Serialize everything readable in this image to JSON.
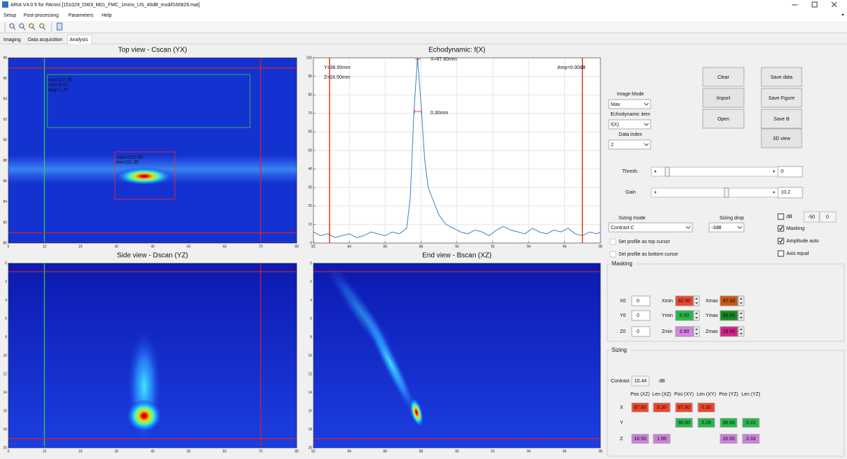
{
  "window": {
    "title": "ARIA V4.0.5 for PAmini [151029_DW3_M01_FMC_1mms_US_40dB_modif160829.mat]"
  },
  "menu": [
    "Setup",
    "Post-processing",
    "Parameters",
    "Help"
  ],
  "tabs": [
    "Imaging",
    "Data acquisition",
    "Analysis"
  ],
  "active_tab": 2,
  "chart_data": [
    {
      "type": "heatmap",
      "title": "Top view - Cscan (YX)",
      "xlim": [
        0,
        80
      ],
      "xticks": [
        0,
        10,
        20,
        30,
        40,
        50,
        60,
        70,
        80
      ],
      "ylim": [
        80,
        98
      ],
      "yticks": [
        80,
        82,
        84,
        86,
        88,
        90,
        92,
        94,
        96,
        98
      ],
      "cursors_x": [
        10,
        70
      ],
      "cursors_x_colors": [
        "#3ccf4a",
        "#e02020"
      ],
      "cursors_y": [
        97,
        81
      ],
      "cursor_color": "#e02020",
      "annotations": [
        {
          "lines": [
            "max=17.26",
            "min=6.67",
            "avg=1.24"
          ],
          "color": "#3ccf4a"
        },
        {
          "lines": [
            "max=100.00",
            "min=31.35"
          ],
          "color": "#ff2a2a"
        }
      ]
    },
    {
      "type": "line",
      "title": "Echodynamic: f(X)",
      "x": [
        82,
        82.4,
        82.8,
        83.2,
        83.6,
        84,
        84.4,
        84.8,
        85.2,
        85.6,
        86,
        86.4,
        86.8,
        87.2,
        87.4,
        87.6,
        87.8,
        88,
        88.2,
        88.4,
        88.6,
        88.8,
        89,
        89.4,
        89.8,
        90.2,
        90.6,
        91,
        91.4,
        91.8,
        92.2,
        92.6,
        93,
        93.4,
        93.8,
        94.2,
        94.6,
        95,
        95.4,
        95.8,
        96.2,
        96.6,
        97,
        97.4,
        97.8,
        98
      ],
      "values": [
        6,
        4,
        5,
        3,
        4,
        5,
        3,
        4,
        6,
        5,
        4,
        6,
        5,
        8,
        25,
        70,
        100,
        75,
        45,
        30,
        25,
        20,
        15,
        10,
        8,
        6,
        5,
        7,
        6,
        4,
        7,
        9,
        7,
        6,
        5,
        8,
        6,
        5,
        7,
        6,
        8,
        5,
        4,
        6,
        5,
        6
      ],
      "color": "#3a7fc8",
      "xlim": [
        82,
        98
      ],
      "xticks": [
        82,
        84,
        86,
        88,
        90,
        92,
        94,
        96,
        98
      ],
      "ylim": [
        0,
        100
      ],
      "yticks": [
        0,
        10,
        20,
        30,
        40,
        50,
        60,
        70,
        80,
        90,
        100
      ],
      "grid": true,
      "cursors_x": [
        82.9,
        97
      ],
      "cursor_color": "#e03a10",
      "annotations": {
        "position": "Y=38.00mm",
        "depth": "Z=16.50mm",
        "peak": "X=87.80mm",
        "width": "0.30mm",
        "amplitude": "Amp=0.00dB"
      }
    },
    {
      "type": "heatmap",
      "title": "Side view - Dscan (YZ)",
      "xlim": [
        0,
        80
      ],
      "xticks": [
        0,
        10,
        20,
        30,
        40,
        50,
        60,
        70,
        80
      ],
      "ylim": [
        20,
        0
      ],
      "yticks": [
        0,
        2,
        4,
        6,
        8,
        10,
        12,
        14,
        16,
        18,
        20
      ],
      "cursors_x": [
        10,
        70
      ],
      "cursors_x_colors": [
        "#3ccf4a",
        "#e02020"
      ],
      "cursors_y": [
        0.9,
        19
      ],
      "cursor_color": "#e02020"
    },
    {
      "type": "heatmap",
      "title": "End view - Bscan (XZ)",
      "xlim": [
        82,
        98
      ],
      "xticks": [
        82,
        84,
        86,
        88,
        90,
        92,
        94,
        96,
        98
      ],
      "ylim": [
        20,
        0
      ],
      "yticks": [
        0,
        2,
        4,
        6,
        8,
        10,
        12,
        14,
        16,
        18,
        20
      ],
      "cursors_y": [
        0.9,
        19
      ],
      "cursor_color": "#e02020"
    }
  ],
  "buttons": {
    "clear": "Clear",
    "import": "Import",
    "open": "Open",
    "save_data": "Save data",
    "save_figure": "Save Figure",
    "save_b": "Save B",
    "view_3d": "3D view"
  },
  "selectors": {
    "image_mode": {
      "label": "Image Mode",
      "value": "Max"
    },
    "echodynamic_item": {
      "label": "Echodynamic item",
      "value": "f(X)"
    },
    "data_index": {
      "label": "Data index",
      "value": "2"
    }
  },
  "sliders": {
    "thresh": {
      "label": "Thresh.",
      "value": "0"
    },
    "gain": {
      "label": "Gain",
      "value": "10.2"
    }
  },
  "sizing_mode": {
    "label": "Sizing mode",
    "value": "Contrast C"
  },
  "sizing_drop": {
    "label": "Sizing drop",
    "value": "-3dB"
  },
  "options": [
    {
      "label": "dB",
      "checked": false
    },
    {
      "label": "Masking",
      "checked": true
    },
    {
      "label": "Amplitude auto",
      "checked": true
    },
    {
      "label": "Axis equal",
      "checked": false
    }
  ],
  "db_range": [
    "-50",
    "0"
  ],
  "profile_options": [
    {
      "label": "Set profile as top cursor",
      "checked": false
    },
    {
      "label": "Set profile as bottom cursor",
      "checked": false
    }
  ],
  "masking": {
    "title": "Masking",
    "rows": [
      {
        "origin_label": "X0",
        "origin": "0",
        "min_label": "Xmin",
        "min": "82.90",
        "min_color": "#f0452a",
        "max_label": "Xmax",
        "max": "97.00",
        "max_color": "#c9580f"
      },
      {
        "origin_label": "Y0",
        "origin": "0",
        "min_label": "Ymin",
        "min": "0.00",
        "min_color": "#27b84a",
        "max_label": "Ymax",
        "max": "80.00",
        "max_color": "#148a22"
      },
      {
        "origin_label": "Z0",
        "origin": "0",
        "min_label": "Zmin",
        "min": "0.90",
        "min_color": "#d584e4",
        "max_label": "Zmax",
        "max": "19.00",
        "max_color": "#d4228e"
      }
    ]
  },
  "sizing": {
    "title": "Sizing",
    "contrast_label": "Contrast",
    "contrast": "10.44",
    "contrast_unit": "dB",
    "columns": [
      "Pos (XZ)",
      "Len (XZ)",
      "Pos (XY)",
      "Len (XY)",
      "Pos (YZ)",
      "Len (YZ)"
    ],
    "rows": [
      {
        "label": "X",
        "color": "#f0452a",
        "cells": [
          "87.80",
          "0.30",
          "87.80",
          "0.30",
          null,
          null
        ]
      },
      {
        "label": "Y",
        "color": "#27b84a",
        "cells": [
          null,
          null,
          "38.00",
          "0.28",
          "38.00",
          "0.22"
        ]
      },
      {
        "label": "Z",
        "color": "#cc80dc",
        "cells": [
          "16.50",
          "1.95",
          null,
          null,
          "16.50",
          "2.33"
        ]
      }
    ]
  }
}
